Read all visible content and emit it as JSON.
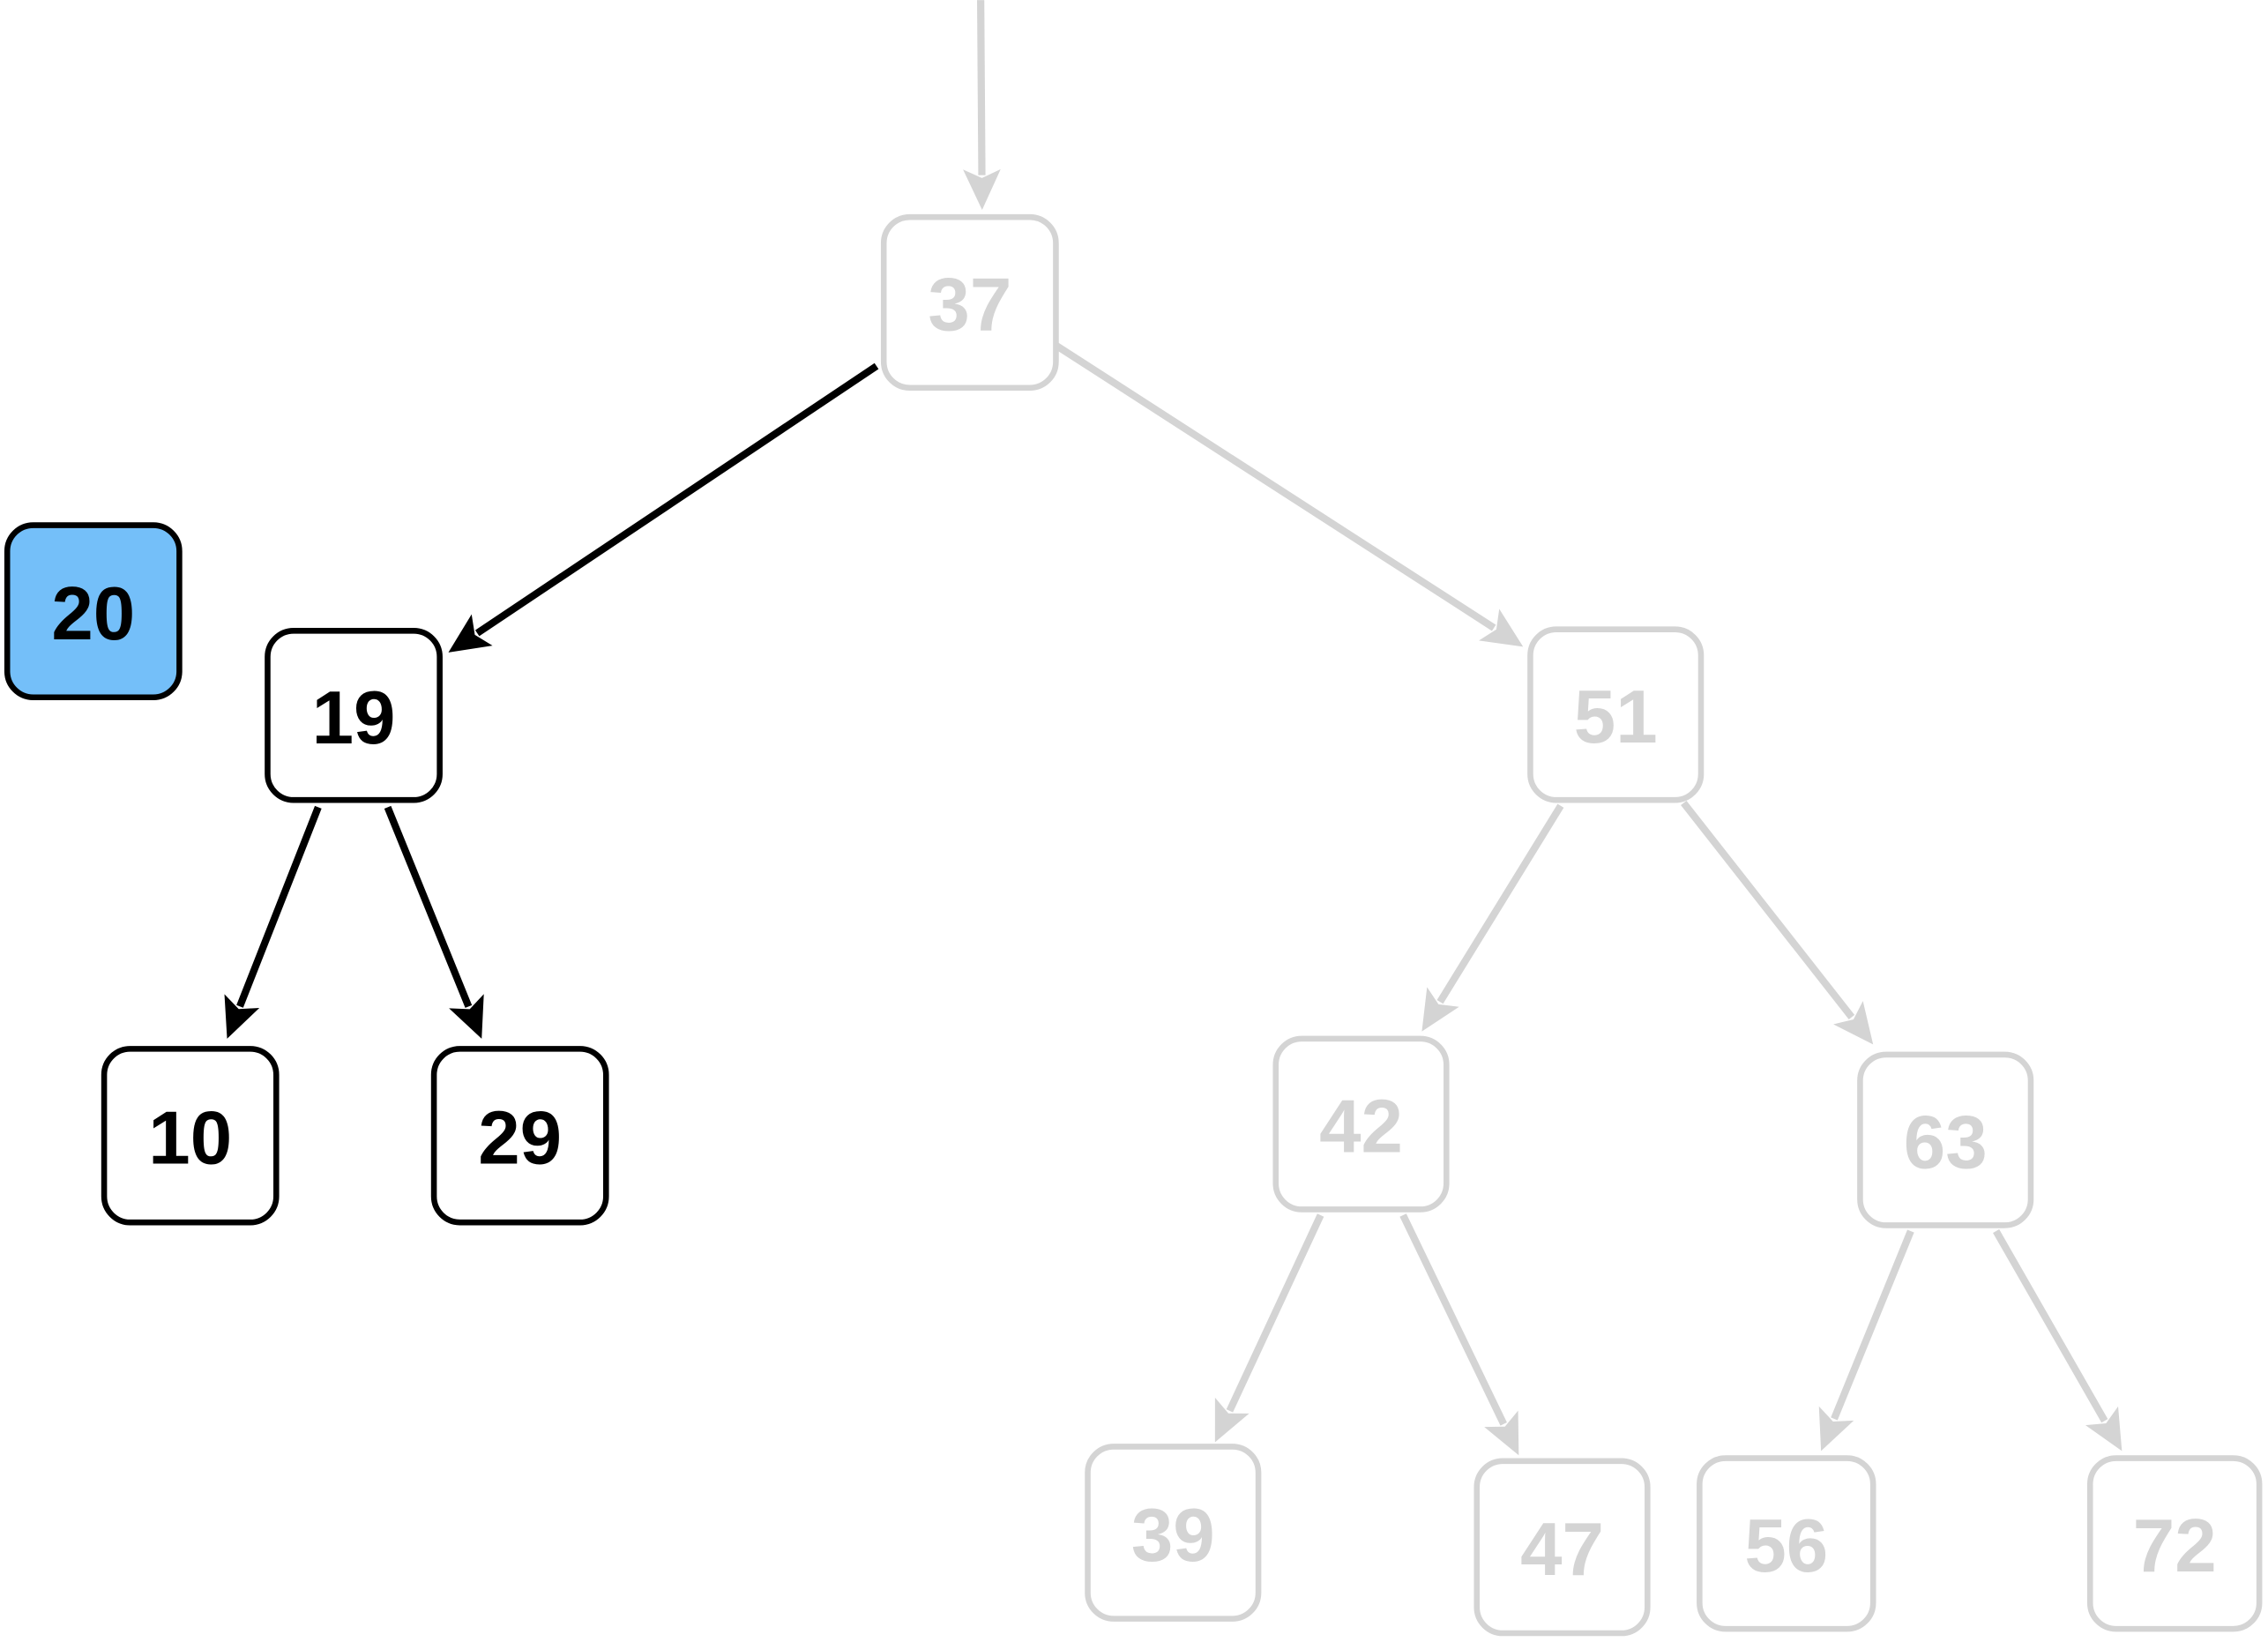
{
  "colors": {
    "active": "#000000",
    "dimmed": "#d4d4d4",
    "highlight_fill": "#74bff9",
    "node_fill": "#ffffff"
  },
  "inserted_node": {
    "value": "20",
    "state": "highlight"
  },
  "nodes": [
    {
      "id": "n37",
      "value": "37",
      "state": "dimmed"
    },
    {
      "id": "n19",
      "value": "19",
      "state": "active"
    },
    {
      "id": "n51",
      "value": "51",
      "state": "dimmed"
    },
    {
      "id": "n10",
      "value": "10",
      "state": "active"
    },
    {
      "id": "n29",
      "value": "29",
      "state": "active"
    },
    {
      "id": "n42",
      "value": "42",
      "state": "dimmed"
    },
    {
      "id": "n63",
      "value": "63",
      "state": "dimmed"
    },
    {
      "id": "n39",
      "value": "39",
      "state": "dimmed"
    },
    {
      "id": "n47",
      "value": "47",
      "state": "dimmed"
    },
    {
      "id": "n56",
      "value": "56",
      "state": "dimmed"
    },
    {
      "id": "n72",
      "value": "72",
      "state": "dimmed"
    }
  ],
  "edges": [
    {
      "from": "root",
      "to": "n37",
      "state": "dimmed"
    },
    {
      "from": "n37",
      "to": "n19",
      "state": "active"
    },
    {
      "from": "n37",
      "to": "n51",
      "state": "dimmed"
    },
    {
      "from": "n19",
      "to": "n10",
      "state": "active"
    },
    {
      "from": "n19",
      "to": "n29",
      "state": "active"
    },
    {
      "from": "n51",
      "to": "n42",
      "state": "dimmed"
    },
    {
      "from": "n51",
      "to": "n63",
      "state": "dimmed"
    },
    {
      "from": "n42",
      "to": "n39",
      "state": "dimmed"
    },
    {
      "from": "n42",
      "to": "n47",
      "state": "dimmed"
    },
    {
      "from": "n63",
      "to": "n56",
      "state": "dimmed"
    },
    {
      "from": "n63",
      "to": "n72",
      "state": "dimmed"
    }
  ]
}
